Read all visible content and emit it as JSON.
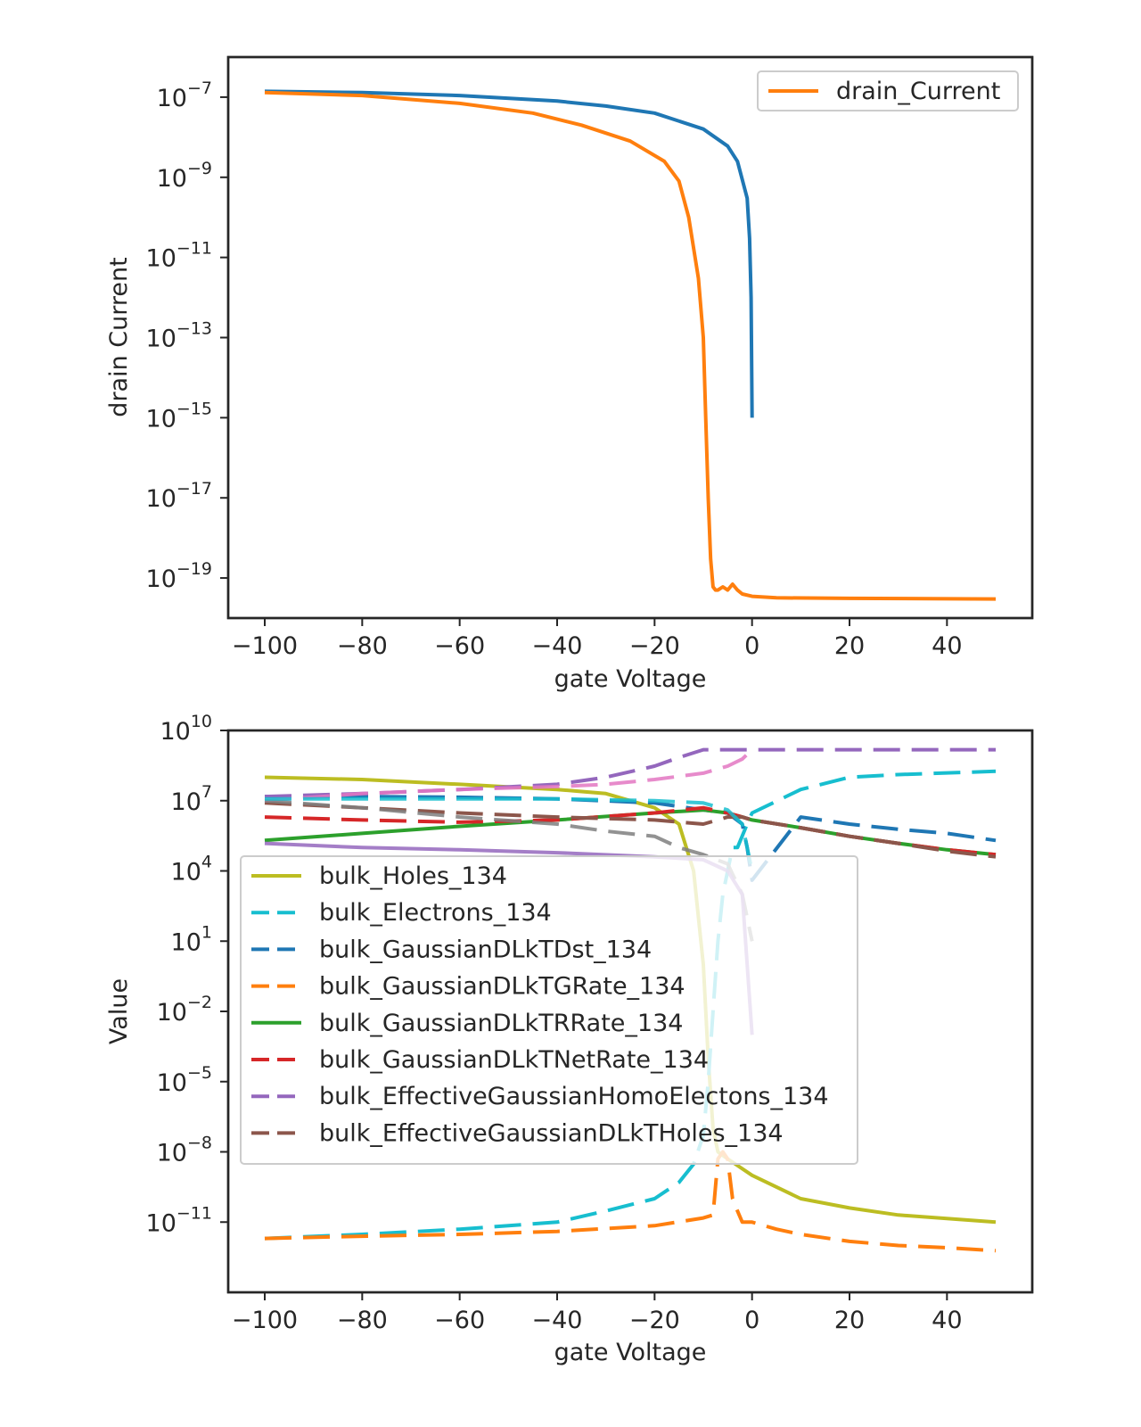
{
  "chart_data": [
    {
      "type": "line",
      "title": "",
      "xlabel": "gate Voltage",
      "ylabel": "drain Current",
      "xscale": "linear",
      "yscale": "log",
      "xlim": [
        -107.5,
        57.5
      ],
      "ylim": [
        1e-20,
        1e-06
      ],
      "xticks": [
        -100,
        -80,
        -60,
        -40,
        -20,
        0,
        20,
        40
      ],
      "xtick_labels": [
        "−100",
        "−80",
        "−60",
        "−40",
        "−20",
        "0",
        "20",
        "40"
      ],
      "yticks": [
        1e-07,
        1e-09,
        1e-11,
        1e-13,
        1e-15,
        1e-17,
        1e-19
      ],
      "ytick_labels": [
        {
          "base": "10",
          "exp": "−7"
        },
        {
          "base": "10",
          "exp": "−9"
        },
        {
          "base": "10",
          "exp": "−11"
        },
        {
          "base": "10",
          "exp": "−13"
        },
        {
          "base": "10",
          "exp": "−15"
        },
        {
          "base": "10",
          "exp": "−17"
        },
        {
          "base": "10",
          "exp": "−19"
        }
      ],
      "grid": false,
      "legend_position": "upper-right",
      "series": [
        {
          "color": "#1f77b4",
          "dash": "solid",
          "x": [
            -100,
            -80,
            -60,
            -40,
            -30,
            -20,
            -10,
            -5,
            -3,
            -1,
            -0.5,
            -0.2,
            0
          ],
          "y": [
            1.4e-07,
            1.3e-07,
            1.1e-07,
            8e-08,
            6e-08,
            4e-08,
            1.6e-08,
            6e-09,
            2.5e-09,
            3e-10,
            3e-11,
            1e-12,
            1e-15
          ]
        },
        {
          "name": "drain_Current",
          "color": "#ff7f0e",
          "dash": "solid",
          "x": [
            -100,
            -80,
            -60,
            -45,
            -35,
            -25,
            -18,
            -15,
            -13,
            -11,
            -10,
            -9.5,
            -9,
            -8.5,
            -8,
            -7.5,
            -7,
            -6,
            -5,
            -4,
            -3,
            -2,
            0,
            5,
            20,
            50
          ],
          "y": [
            1.3e-07,
            1.1e-07,
            7e-08,
            4e-08,
            2e-08,
            8e-09,
            2.5e-09,
            8e-10,
            1e-10,
            3e-12,
            1e-13,
            1e-15,
            1e-17,
            3e-19,
            6e-20,
            5e-20,
            5e-20,
            6e-20,
            5e-20,
            7e-20,
            5e-20,
            4e-20,
            3.5e-20,
            3.2e-20,
            3.1e-20,
            3e-20
          ]
        }
      ]
    },
    {
      "type": "line",
      "title": "",
      "xlabel": "gate Voltage",
      "ylabel": "Value",
      "xscale": "linear",
      "yscale": "log",
      "xlim": [
        -107.5,
        57.5
      ],
      "ylim": [
        1e-14,
        10000000000.0
      ],
      "xticks": [
        -100,
        -80,
        -60,
        -40,
        -20,
        0,
        20,
        40
      ],
      "xtick_labels": [
        "−100",
        "−80",
        "−60",
        "−40",
        "−20",
        "0",
        "20",
        "40"
      ],
      "yticks": [
        10000000000.0,
        10000000.0,
        10000.0,
        10.0,
        0.01,
        1e-05,
        1e-08,
        1e-11
      ],
      "ytick_labels": [
        {
          "base": "10",
          "exp": "10"
        },
        {
          "base": "10",
          "exp": "7"
        },
        {
          "base": "10",
          "exp": "4"
        },
        {
          "base": "10",
          "exp": "1"
        },
        {
          "base": "10",
          "exp": "−2"
        },
        {
          "base": "10",
          "exp": "−5"
        },
        {
          "base": "10",
          "exp": "−8"
        },
        {
          "base": "10",
          "exp": "−11"
        }
      ],
      "grid": false,
      "legend_position": "center-left",
      "series": [
        {
          "name": "bulk_Holes_134",
          "color": "#bcbd22",
          "dash": "solid",
          "x": [
            -100,
            -80,
            -60,
            -40,
            -30,
            -20,
            -15,
            -12,
            -10,
            -9,
            -8,
            -7,
            -5,
            0,
            10,
            20,
            30,
            50
          ],
          "y": [
            100000000.0,
            80000000.0,
            50000000.0,
            30000000.0,
            20000000.0,
            5000000.0,
            1000000.0,
            10000.0,
            1.0,
            0.0001,
            1e-07,
            1e-08,
            5e-09,
            1e-09,
            1e-10,
            4e-11,
            2e-11,
            1e-11
          ]
        },
        {
          "name": "bulk_Electrons_134",
          "color": "#17becf",
          "dash": "dashed",
          "x": [
            -100,
            -80,
            -60,
            -40,
            -30,
            -20,
            -15,
            -12,
            -10,
            -9,
            -8,
            -7,
            -6,
            -5,
            -4,
            -3,
            -1,
            0,
            10,
            20,
            30,
            50
          ],
          "y": [
            2e-12,
            3e-12,
            5e-12,
            1e-11,
            3e-11,
            1e-10,
            5e-10,
            3e-09,
            5e-08,
            1e-05,
            0.01,
            10.0,
            1000.0,
            10000.0,
            100000.0,
            100000.0,
            1000000.0,
            3000000.0,
            30000000.0,
            100000000.0,
            130000000.0,
            180000000.0
          ]
        },
        {
          "name": "bulk_GaussianDLkTDst_134",
          "color": "#1f77b4",
          "dash": "dashed",
          "x": [
            -100,
            -80,
            -60,
            -40,
            -20,
            -10,
            -5,
            -2,
            -1,
            0,
            10,
            20,
            30,
            40,
            50
          ],
          "y": [
            15000000.0,
            15000000.0,
            14000000.0,
            12000000.0,
            8000000.0,
            4000000.0,
            3000000.0,
            1000000.0,
            100000.0,
            4000.0,
            2000000.0,
            1000000.0,
            600000.0,
            400000.0,
            200000.0
          ]
        },
        {
          "name": "bulk_GaussianDLkTGRate_134",
          "color": "#ff7f0e",
          "dash": "dashed",
          "x": [
            -100,
            -80,
            -60,
            -40,
            -20,
            -10,
            -8,
            -7,
            -6,
            -5,
            -4,
            -3,
            -2,
            0,
            5,
            10,
            20,
            30,
            40,
            50
          ],
          "y": [
            2e-12,
            2.5e-12,
            3e-12,
            4e-12,
            7e-12,
            1.5e-11,
            2e-11,
            5e-09,
            1e-08,
            5e-09,
            1e-10,
            3e-11,
            1e-11,
            1e-11,
            5e-12,
            3e-12,
            1.5e-12,
            1e-12,
            8e-13,
            6e-13
          ]
        },
        {
          "name": "bulk_GaussianDLkTRRate_134",
          "color": "#2ca02c",
          "dash": "solid",
          "x": [
            -100,
            -80,
            -60,
            -40,
            -20,
            -10,
            -5,
            -2,
            0,
            10,
            20,
            30,
            40,
            50
          ],
          "y": [
            200000.0,
            400000.0,
            800000.0,
            1500000.0,
            3000000.0,
            4000000.0,
            3000000.0,
            2000000.0,
            1500000.0,
            700000.0,
            300000.0,
            150000.0,
            80000.0,
            50000.0
          ]
        },
        {
          "name": "bulk_GaussianDLkTNetRate_134",
          "color": "#d62728",
          "dash": "dashed",
          "x": [
            -100,
            -80,
            -60,
            -40,
            -20,
            -10,
            -5,
            -2,
            0,
            10,
            20,
            30,
            40,
            50
          ],
          "y": [
            2000000.0,
            1500000.0,
            1200000.0,
            1500000.0,
            3000000.0,
            5000000.0,
            3000000.0,
            2000000.0,
            1500000.0,
            700000.0,
            300000.0,
            150000.0,
            80000.0,
            50000.0
          ]
        },
        {
          "name": "bulk_EffectiveGaussianHomoElectons_134",
          "color": "#9467bd",
          "dash": "dashed",
          "x": [
            -100,
            -80,
            -60,
            -40,
            -30,
            -20,
            -15,
            -10,
            -5,
            0,
            10,
            20,
            30,
            40,
            50
          ],
          "y": [
            15000000.0,
            20000000.0,
            30000000.0,
            50000000.0,
            100000000.0,
            300000000.0,
            700000000.0,
            1500000000.0,
            1500000000.0,
            1500000000.0,
            1500000000.0,
            1500000000.0,
            1500000000.0,
            1500000000.0,
            1500000000.0
          ]
        },
        {
          "name": "bulk_EffectiveGaussianDLkTHoles_134",
          "color": "#8c564b",
          "dash": "dashed",
          "x": [
            -100,
            -80,
            -60,
            -40,
            -20,
            -10,
            -5,
            -2,
            0,
            10,
            20,
            30,
            40,
            50
          ],
          "y": [
            8000000.0,
            5000000.0,
            3000000.0,
            2000000.0,
            1500000.0,
            1000000.0,
            2000000.0,
            2000000.0,
            1500000.0,
            700000.0,
            300000.0,
            150000.0,
            70000.0,
            40000.0
          ]
        },
        {
          "color": "#e377c2",
          "dash": "dashed",
          "x": [
            -100,
            -80,
            -60,
            -40,
            -30,
            -20,
            -10,
            -5,
            -2,
            0
          ],
          "y": [
            10000000.0,
            20000000.0,
            30000000.0,
            40000000.0,
            50000000.0,
            80000000.0,
            150000000.0,
            300000000.0,
            600000000.0,
            1500000000.0
          ]
        },
        {
          "color": "#7f7f7f",
          "dash": "dashed",
          "x": [
            -100,
            -80,
            -60,
            -40,
            -30,
            -20,
            -15,
            -10,
            -5,
            -2,
            0
          ],
          "y": [
            10000000.0,
            5000000.0,
            2000000.0,
            1000000.0,
            500000.0,
            300000.0,
            100000.0,
            50000.0,
            20000.0,
            1000.0,
            10.0
          ]
        },
        {
          "color": "#17becf",
          "dash": "dashed",
          "x": [
            -100,
            -80,
            -60,
            -40,
            -20,
            -10,
            -5,
            -2,
            0
          ],
          "y": [
            12000000.0,
            12000000.0,
            12000000.0,
            12000000.0,
            10000000.0,
            8000000.0,
            4000000.0,
            1000000.0,
            10000.0
          ]
        },
        {
          "color": "#9467bd",
          "dash": "solid",
          "x": [
            -100,
            -80,
            -60,
            -40,
            -20,
            -10,
            -5,
            -2,
            -1,
            0
          ],
          "y": [
            150000.0,
            100000.0,
            80000.0,
            60000.0,
            40000.0,
            30000.0,
            10000.0,
            1000.0,
            1.0,
            0.001
          ]
        }
      ]
    }
  ]
}
